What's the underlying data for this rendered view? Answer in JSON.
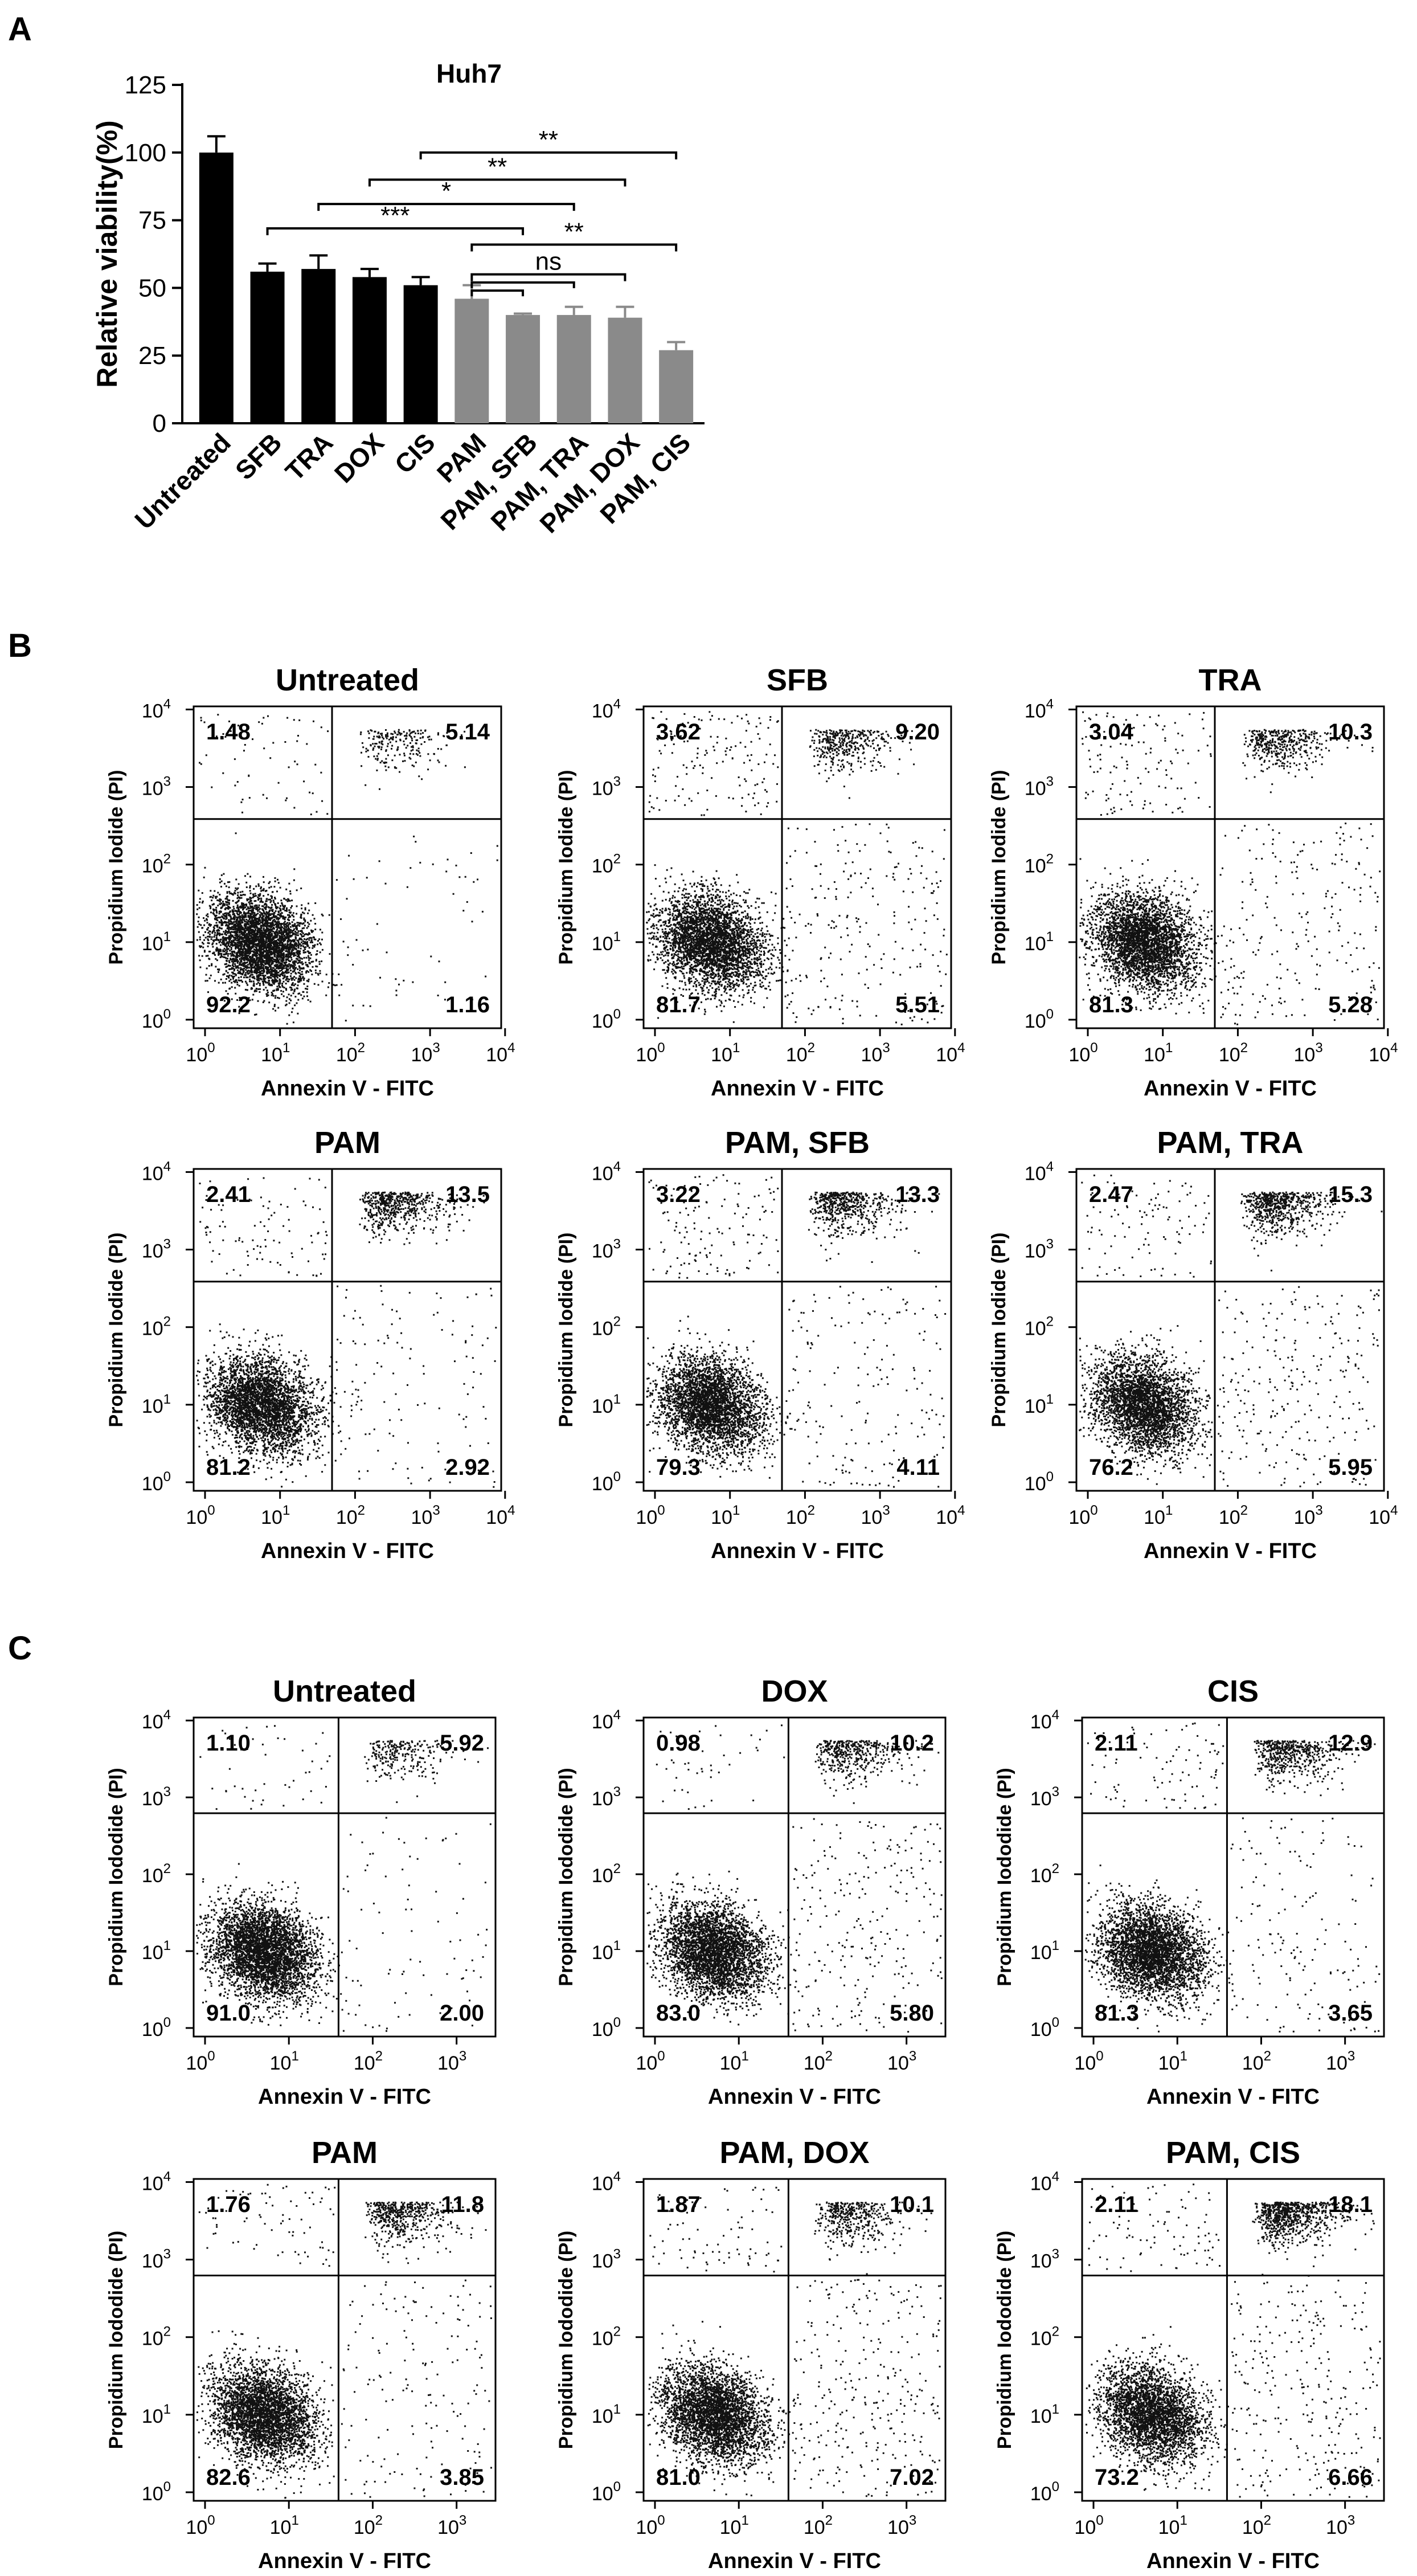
{
  "panel_letters": {
    "a": "A",
    "b": "B",
    "c": "C"
  },
  "chart_data": [
    {
      "type": "bar",
      "panel": "A",
      "title": "Huh7",
      "xlabel": "",
      "ylabel": "Relative viability(%)",
      "ylim": [
        0,
        125
      ],
      "yticks": [
        0,
        25,
        50,
        75,
        100,
        125
      ],
      "categories": [
        "Untreated",
        "SFB",
        "TRA",
        "DOX",
        "CIS",
        "PAM",
        "PAM, SFB",
        "PAM, TRA",
        "PAM, DOX",
        "PAM, CIS"
      ],
      "values": [
        100,
        56,
        57,
        54,
        51,
        46,
        40,
        40,
        39,
        27
      ],
      "errors": [
        6,
        3,
        5,
        3,
        3,
        5,
        0.5,
        3,
        4,
        3
      ],
      "colors": [
        "#000000",
        "#000000",
        "#000000",
        "#000000",
        "#000000",
        "#8a8a8a",
        "#8a8a8a",
        "#8a8a8a",
        "#8a8a8a",
        "#8a8a8a"
      ],
      "significance": [
        {
          "label": "**",
          "from": "CIS",
          "to": "PAM, CIS",
          "y": 100
        },
        {
          "label": "**",
          "from": "DOX",
          "to": "PAM, DOX",
          "y": 90
        },
        {
          "label": "*",
          "from": "TRA",
          "to": "PAM, TRA",
          "y": 81
        },
        {
          "label": "***",
          "from": "SFB",
          "to": "PAM, SFB",
          "y": 72
        },
        {
          "label": "**",
          "from": "PAM",
          "to": "PAM, CIS",
          "y": 66
        },
        {
          "label": "ns",
          "from": "PAM",
          "to": "PAM, DOX",
          "y": 55
        }
      ]
    },
    {
      "type": "scatter",
      "panel": "B",
      "title": "Untreated",
      "xlabel": "Annexin V - FITC",
      "ylabel": "Propidium Iodide (PI)",
      "xticks": [
        "10",
        "10",
        "10",
        "10",
        "10"
      ],
      "xtick_exponents": [
        "0",
        "1",
        "2",
        "3",
        "4"
      ],
      "yticks": [
        "10",
        "10",
        "10",
        "10",
        "10"
      ],
      "ytick_exponents": [
        "0",
        "1",
        "2",
        "3",
        "4"
      ],
      "quadrants": {
        "upper_left": "1.48",
        "upper_right": "5.14",
        "lower_left": "92.2",
        "lower_right": "1.16"
      }
    },
    {
      "type": "scatter",
      "panel": "B",
      "title": "SFB",
      "xlabel": "Annexin V - FITC",
      "ylabel": "Propidium Iodide (PI)",
      "xticks": [
        "10",
        "10",
        "10",
        "10",
        "10"
      ],
      "xtick_exponents": [
        "0",
        "1",
        "2",
        "3",
        "4"
      ],
      "yticks": [
        "10",
        "10",
        "10",
        "10",
        "10"
      ],
      "ytick_exponents": [
        "0",
        "1",
        "2",
        "3",
        "4"
      ],
      "quadrants": {
        "upper_left": "3.62",
        "upper_right": "9.20",
        "lower_left": "81.7",
        "lower_right": "5.51"
      }
    },
    {
      "type": "scatter",
      "panel": "B",
      "title": "TRA",
      "xlabel": "Annexin V - FITC",
      "ylabel": "Propidium Iodide (PI)",
      "xticks": [
        "10",
        "10",
        "10",
        "10",
        "10"
      ],
      "xtick_exponents": [
        "0",
        "1",
        "2",
        "3",
        "4"
      ],
      "yticks": [
        "10",
        "10",
        "10",
        "10",
        "10"
      ],
      "ytick_exponents": [
        "0",
        "1",
        "2",
        "3",
        "4"
      ],
      "quadrants": {
        "upper_left": "3.04",
        "upper_right": "10.3",
        "lower_left": "81.3",
        "lower_right": "5.28"
      }
    },
    {
      "type": "scatter",
      "panel": "B",
      "title": "PAM",
      "xlabel": "Annexin V - FITC",
      "ylabel": "Propidium Iodide (PI)",
      "xticks": [
        "10",
        "10",
        "10",
        "10",
        "10"
      ],
      "xtick_exponents": [
        "0",
        "1",
        "2",
        "3",
        "4"
      ],
      "yticks": [
        "10",
        "10",
        "10",
        "10",
        "10"
      ],
      "ytick_exponents": [
        "0",
        "1",
        "2",
        "3",
        "4"
      ],
      "quadrants": {
        "upper_left": "2.41",
        "upper_right": "13.5",
        "lower_left": "81.2",
        "lower_right": "2.92"
      }
    },
    {
      "type": "scatter",
      "panel": "B",
      "title": "PAM, SFB",
      "xlabel": "Annexin V - FITC",
      "ylabel": "Propidium Iodide (PI)",
      "xticks": [
        "10",
        "10",
        "10",
        "10",
        "10"
      ],
      "xtick_exponents": [
        "0",
        "1",
        "2",
        "3",
        "4"
      ],
      "yticks": [
        "10",
        "10",
        "10",
        "10",
        "10"
      ],
      "ytick_exponents": [
        "0",
        "1",
        "2",
        "3",
        "4"
      ],
      "quadrants": {
        "upper_left": "3.22",
        "upper_right": "13.3",
        "lower_left": "79.3",
        "lower_right": "4.11"
      }
    },
    {
      "type": "scatter",
      "panel": "B",
      "title": "PAM, TRA",
      "xlabel": "Annexin V - FITC",
      "ylabel": "Propidium Iodide (PI)",
      "xticks": [
        "10",
        "10",
        "10",
        "10",
        "10"
      ],
      "xtick_exponents": [
        "0",
        "1",
        "2",
        "3",
        "4"
      ],
      "yticks": [
        "10",
        "10",
        "10",
        "10",
        "10"
      ],
      "ytick_exponents": [
        "0",
        "1",
        "2",
        "3",
        "4"
      ],
      "quadrants": {
        "upper_left": "2.47",
        "upper_right": "15.3",
        "lower_left": "76.2",
        "lower_right": "5.95"
      }
    },
    {
      "type": "scatter",
      "panel": "C",
      "title": "Untreated",
      "xlabel": "Annexin V - FITC",
      "ylabel": "Propidium Iododide (PI)",
      "xticks": [
        "10",
        "10",
        "10",
        "10"
      ],
      "xtick_exponents": [
        "0",
        "1",
        "2",
        "3"
      ],
      "yticks": [
        "10",
        "10",
        "10",
        "10",
        "10"
      ],
      "ytick_exponents": [
        "0",
        "1",
        "2",
        "3",
        "4"
      ],
      "quadrants": {
        "upper_left": "1.10",
        "upper_right": "5.92",
        "lower_left": "91.0",
        "lower_right": "2.00"
      }
    },
    {
      "type": "scatter",
      "panel": "C",
      "title": "DOX",
      "xlabel": "Annexin V - FITC",
      "ylabel": "Propidium Iododide (PI)",
      "xticks": [
        "10",
        "10",
        "10",
        "10"
      ],
      "xtick_exponents": [
        "0",
        "1",
        "2",
        "3"
      ],
      "yticks": [
        "10",
        "10",
        "10",
        "10",
        "10"
      ],
      "ytick_exponents": [
        "0",
        "1",
        "2",
        "3",
        "4"
      ],
      "quadrants": {
        "upper_left": "0.98",
        "upper_right": "10.2",
        "lower_left": "83.0",
        "lower_right": "5.80"
      }
    },
    {
      "type": "scatter",
      "panel": "C",
      "title": "CIS",
      "xlabel": "Annexin V - FITC",
      "ylabel": "Propidium Iododide (PI)",
      "xticks": [
        "10",
        "10",
        "10",
        "10"
      ],
      "xtick_exponents": [
        "0",
        "1",
        "2",
        "3"
      ],
      "yticks": [
        "10",
        "10",
        "10",
        "10",
        "10"
      ],
      "ytick_exponents": [
        "0",
        "1",
        "2",
        "3",
        "4"
      ],
      "quadrants": {
        "upper_left": "2.11",
        "upper_right": "12.9",
        "lower_left": "81.3",
        "lower_right": "3.65"
      }
    },
    {
      "type": "scatter",
      "panel": "C",
      "title": "PAM",
      "xlabel": "Annexin V - FITC",
      "ylabel": "Propidium Iododide (PI)",
      "xticks": [
        "10",
        "10",
        "10",
        "10"
      ],
      "xtick_exponents": [
        "0",
        "1",
        "2",
        "3"
      ],
      "yticks": [
        "10",
        "10",
        "10",
        "10",
        "10"
      ],
      "ytick_exponents": [
        "0",
        "1",
        "2",
        "3",
        "4"
      ],
      "quadrants": {
        "upper_left": "1.76",
        "upper_right": "11.8",
        "lower_left": "82.6",
        "lower_right": "3.85"
      }
    },
    {
      "type": "scatter",
      "panel": "C",
      "title": "PAM, DOX",
      "xlabel": "Annexin V - FITC",
      "ylabel": "Propidium Iododide (PI)",
      "xticks": [
        "10",
        "10",
        "10",
        "10"
      ],
      "xtick_exponents": [
        "0",
        "1",
        "2",
        "3"
      ],
      "yticks": [
        "10",
        "10",
        "10",
        "10",
        "10"
      ],
      "ytick_exponents": [
        "0",
        "1",
        "2",
        "3",
        "4"
      ],
      "quadrants": {
        "upper_left": "1.87",
        "upper_right": "10.1",
        "lower_left": "81.0",
        "lower_right": "7.02"
      }
    },
    {
      "type": "scatter",
      "panel": "C",
      "title": "PAM, CIS",
      "xlabel": "Annexin V - FITC",
      "ylabel": "Propidium Iododide (PI)",
      "xticks": [
        "10",
        "10",
        "10",
        "10"
      ],
      "xtick_exponents": [
        "0",
        "1",
        "2",
        "3"
      ],
      "yticks": [
        "10",
        "10",
        "10",
        "10",
        "10"
      ],
      "ytick_exponents": [
        "0",
        "1",
        "2",
        "3",
        "4"
      ],
      "quadrants": {
        "upper_left": "2.11",
        "upper_right": "18.1",
        "lower_left": "73.2",
        "lower_right": "6.66"
      }
    }
  ]
}
